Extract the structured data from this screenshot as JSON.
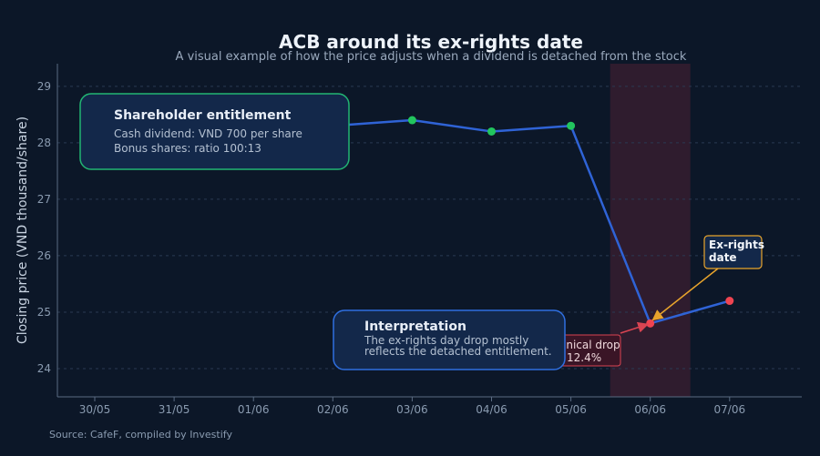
{
  "chart_data": {
    "type": "line",
    "title": "ACB around its ex-rights date",
    "subtitle": "A visual example of how the price adjusts when a dividend is detached from the stock",
    "xlabel": "",
    "ylabel": "Closing price (VND thousand/share)",
    "categories": [
      "30/05",
      "31/05",
      "01/06",
      "02/06",
      "03/06",
      "04/06",
      "05/06",
      "06/06",
      "07/06"
    ],
    "ylim": [
      23.5,
      29.4
    ],
    "yticks": [
      24,
      25,
      26,
      27,
      28,
      29
    ],
    "grid": true,
    "series": [
      {
        "points": [
          {
            "x": "02/06",
            "y": 28.3
          },
          {
            "x": "03/06",
            "y": 28.4
          },
          {
            "x": "04/06",
            "y": 28.2
          },
          {
            "x": "05/06",
            "y": 28.3
          },
          {
            "x": "06/06",
            "y": 24.8
          },
          {
            "x": "07/06",
            "y": 25.2
          }
        ],
        "color": "#2f63d6",
        "pre_marker_color": "#22c55e",
        "post_marker_color": "#ef4451"
      }
    ],
    "highlight_band": {
      "center": "06/06",
      "color": "#5a2436"
    },
    "source": "Source: CafeF, compiled by Investify"
  },
  "annotations": {
    "entitlement": {
      "title": "Shareholder entitlement",
      "lines": [
        "Cash dividend: VND 700 per share",
        "Bonus shares: ratio 100:13"
      ],
      "border_color": "#22b573"
    },
    "interpretation": {
      "title": "Interpretation",
      "lines": [
        "The ex-rights day drop mostly",
        "reflects the detached entitlement."
      ],
      "border_color": "#2f6fe0"
    },
    "drop": {
      "lines": [
        "anical drop",
        "12.4%"
      ],
      "border_color": "#d94452"
    },
    "exrights": {
      "lines": [
        "Ex-rights",
        "date"
      ],
      "border_color": "#e8a42c"
    }
  }
}
